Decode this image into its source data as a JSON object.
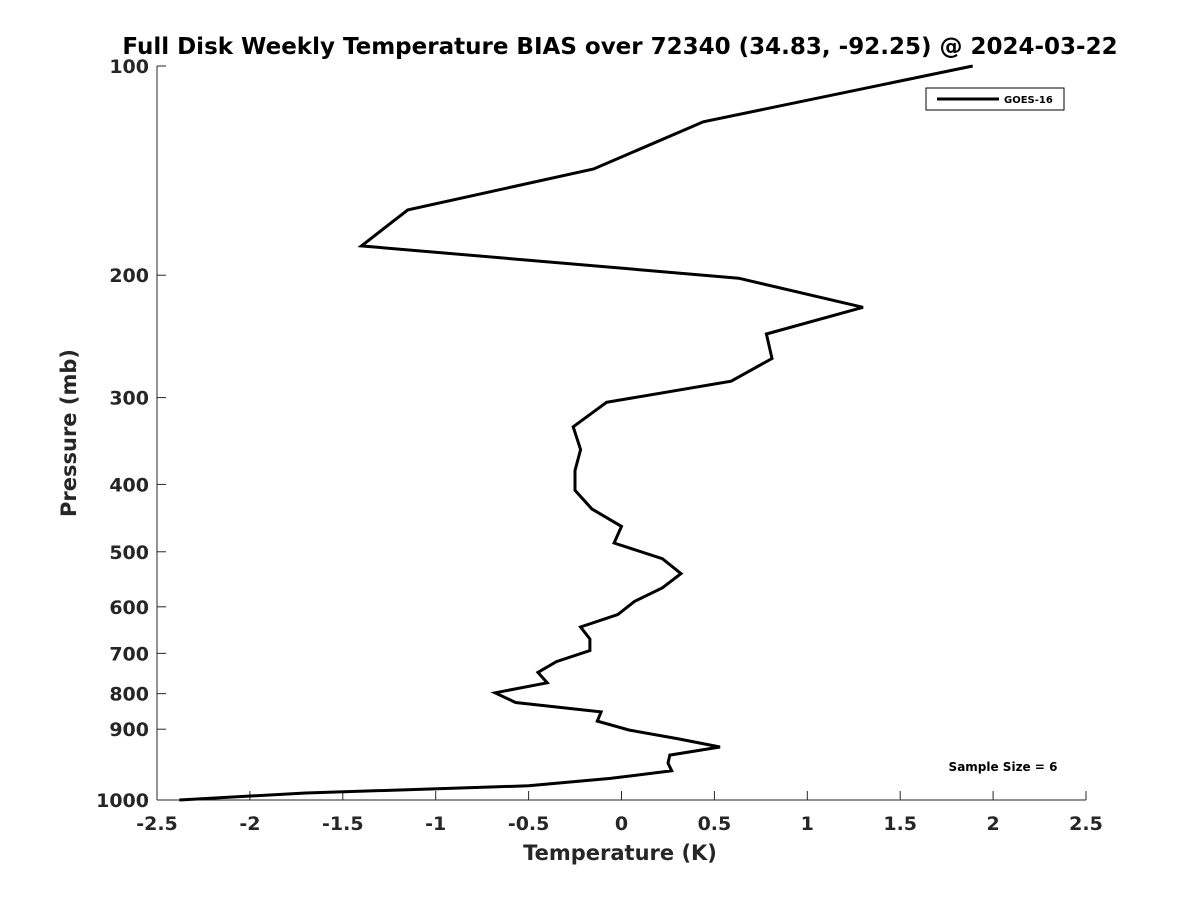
{
  "chart_data": {
    "type": "line",
    "title": "Full Disk Weekly Temperature BIAS over 72340 (34.83, -92.25) @ 2024-03-22",
    "xlabel": "Temperature (K)",
    "ylabel": "Pressure (mb)",
    "xlim": [
      -2.5,
      2.5
    ],
    "ylim": [
      100,
      1000
    ],
    "y_scale": "log",
    "y_reversed": true,
    "x_ticks": [
      "-2.5",
      "-2",
      "-1.5",
      "-1",
      "-0.5",
      "0",
      "0.5",
      "1",
      "1.5",
      "2",
      "2.5"
    ],
    "x_tick_values": [
      -2.5,
      -2,
      -1.5,
      -1,
      -0.5,
      0,
      0.5,
      1,
      1.5,
      2,
      2.5
    ],
    "y_ticks": [
      "100",
      "200",
      "300",
      "400",
      "500",
      "600",
      "700",
      "800",
      "900",
      "1000"
    ],
    "y_tick_values": [
      100,
      200,
      300,
      400,
      500,
      600,
      700,
      800,
      900,
      1000
    ],
    "grid": false,
    "legend_position": "top-right",
    "annotation": "Sample Size = 6",
    "series": [
      {
        "name": "GOES-16",
        "color": "#000000",
        "points": [
          {
            "x": 1.89,
            "p": 100
          },
          {
            "x": 0.44,
            "p": 120
          },
          {
            "x": -0.15,
            "p": 140
          },
          {
            "x": -1.15,
            "p": 160
          },
          {
            "x": -1.4,
            "p": 180
          },
          {
            "x": 0.63,
            "p": 200
          },
          {
            "x": 1.3,
            "p": 220
          },
          {
            "x": 0.78,
            "p": 240
          },
          {
            "x": 0.81,
            "p": 260
          },
          {
            "x": 0.59,
            "p": 280
          },
          {
            "x": -0.08,
            "p": 300
          },
          {
            "x": -0.26,
            "p": 325
          },
          {
            "x": -0.22,
            "p": 350
          },
          {
            "x": -0.25,
            "p": 375
          },
          {
            "x": -0.25,
            "p": 400
          },
          {
            "x": -0.16,
            "p": 425
          },
          {
            "x": 0.0,
            "p": 450
          },
          {
            "x": -0.04,
            "p": 475
          },
          {
            "x": 0.22,
            "p": 500
          },
          {
            "x": 0.32,
            "p": 525
          },
          {
            "x": 0.22,
            "p": 550
          },
          {
            "x": 0.07,
            "p": 575
          },
          {
            "x": -0.02,
            "p": 600
          },
          {
            "x": -0.22,
            "p": 625
          },
          {
            "x": -0.17,
            "p": 650
          },
          {
            "x": -0.17,
            "p": 675
          },
          {
            "x": -0.35,
            "p": 700
          },
          {
            "x": -0.45,
            "p": 725
          },
          {
            "x": -0.4,
            "p": 750
          },
          {
            "x": -0.68,
            "p": 775
          },
          {
            "x": -0.57,
            "p": 800
          },
          {
            "x": -0.11,
            "p": 825
          },
          {
            "x": -0.13,
            "p": 850
          },
          {
            "x": 0.04,
            "p": 875
          },
          {
            "x": 0.3,
            "p": 900
          },
          {
            "x": 0.53,
            "p": 925
          },
          {
            "x": 0.26,
            "p": 950
          },
          {
            "x": 0.25,
            "p": 975
          },
          {
            "x": 0.27,
            "p": 1000
          },
          {
            "x": -0.06,
            "p": 1025
          },
          {
            "x": -0.5,
            "p": 1050
          },
          {
            "x": -1.7,
            "p": 1075
          },
          {
            "x": -2.38,
            "p": 1100
          }
        ]
      }
    ]
  }
}
